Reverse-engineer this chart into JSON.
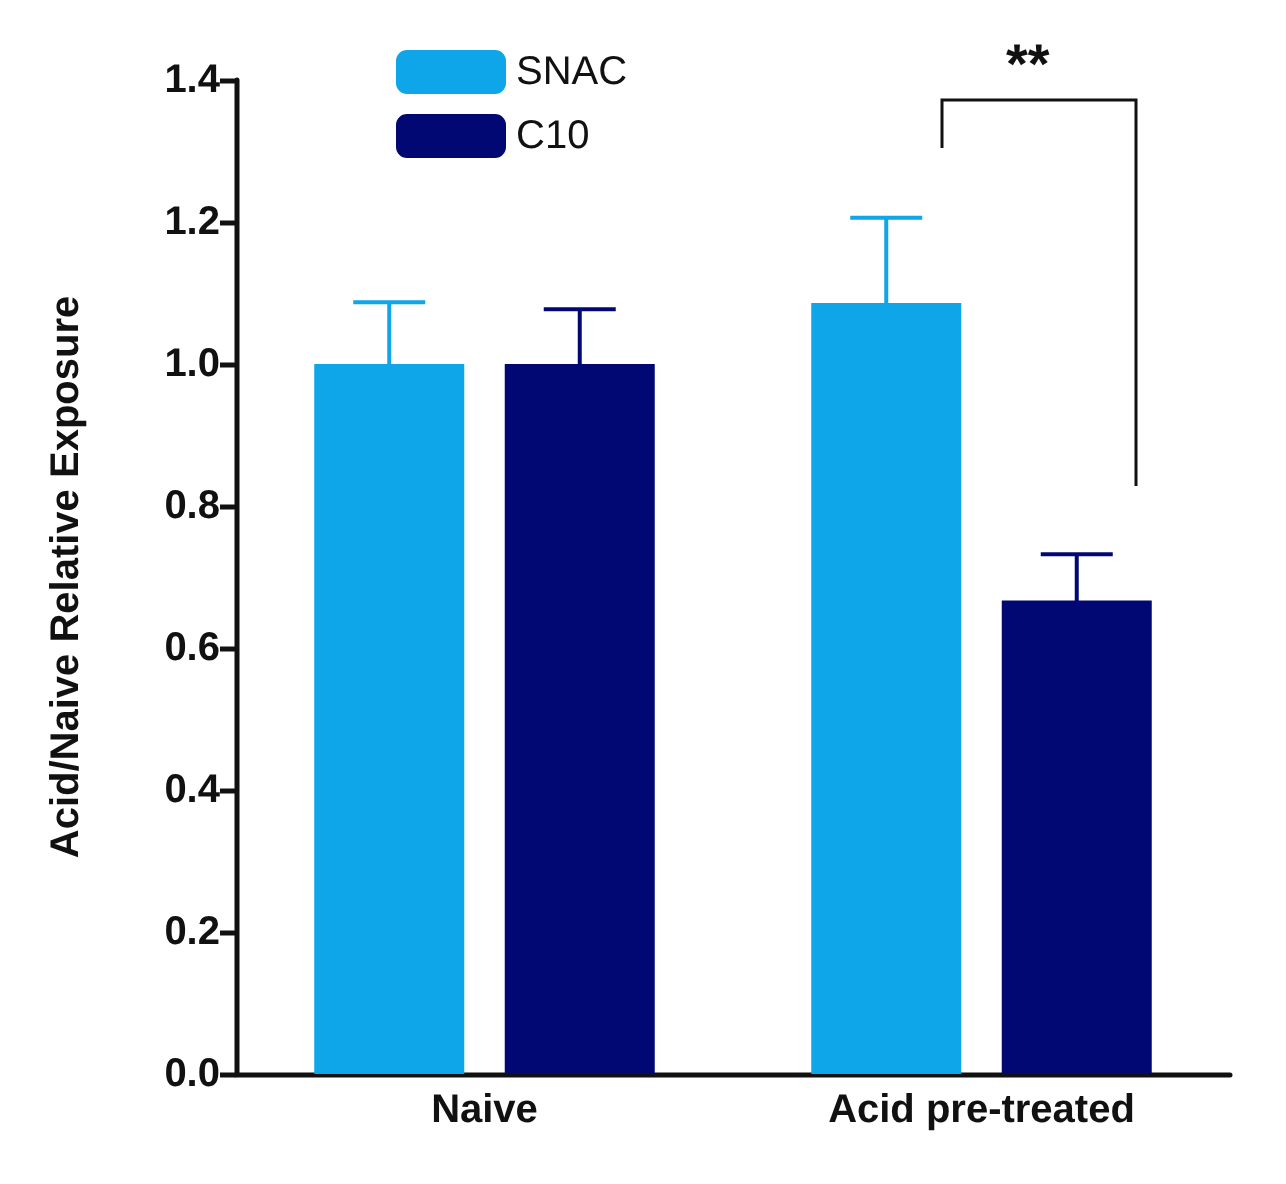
{
  "chart_data": {
    "type": "bar",
    "ylabel": "Acid/Naive Relative Exposure",
    "categories": [
      "Naive",
      "Acid pre-treated"
    ],
    "series": [
      {
        "name": "SNAC",
        "color": "#0ea5e9",
        "values": [
          1.0,
          1.086
        ],
        "errors": [
          0.087,
          0.12
        ]
      },
      {
        "name": "C10",
        "color": "#020873",
        "values": [
          1.0,
          0.667
        ],
        "errors": [
          0.077,
          0.065
        ]
      }
    ],
    "ylim": [
      0,
      1.4
    ],
    "yticks": [
      {
        "value": 0,
        "label": "0.0"
      },
      {
        "value": 0.2,
        "label": "0.2"
      },
      {
        "value": 0.4,
        "label": "0.4"
      },
      {
        "value": 0.6,
        "label": "0.6"
      },
      {
        "value": 0.8,
        "label": "0.8"
      },
      {
        "value": 1,
        "label": "1.0"
      },
      {
        "value": 1.2,
        "label": "1.2"
      },
      {
        "value": 1.4,
        "label": "1.4"
      }
    ],
    "grid": false,
    "legend": "top left",
    "annotations": [
      "**"
    ]
  }
}
